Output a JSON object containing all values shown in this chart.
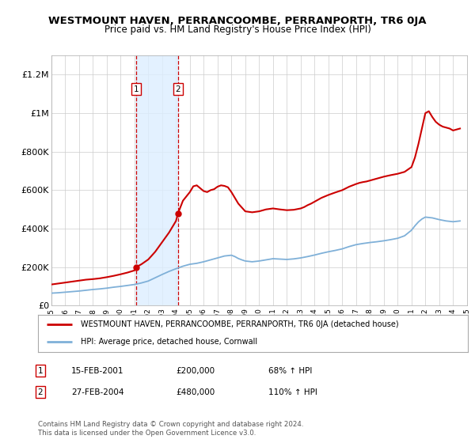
{
  "title": "WESTMOUNT HAVEN, PERRANCOOMBE, PERRANPORTH, TR6 0JA",
  "subtitle": "Price paid vs. HM Land Registry's House Price Index (HPI)",
  "ylim": [
    0,
    1300000
  ],
  "yticks": [
    0,
    200000,
    400000,
    600000,
    800000,
    1000000,
    1200000
  ],
  "ytick_labels": [
    "£0",
    "£200K",
    "£400K",
    "£600K",
    "£800K",
    "£1M",
    "£1.2M"
  ],
  "background_color": "#ffffff",
  "plot_bg_color": "#ffffff",
  "grid_color": "#cccccc",
  "red_line_color": "#cc0000",
  "blue_line_color": "#7fb0d8",
  "highlight_fill": "#ddeeff",
  "highlight_edge": "#cc0000",
  "transaction1": {
    "date_num": 2001.12,
    "value": 200000,
    "label": "1",
    "date_str": "15-FEB-2001",
    "pct": "68%"
  },
  "transaction2": {
    "date_num": 2004.15,
    "value": 480000,
    "label": "2",
    "date_str": "27-FEB-2004",
    "pct": "110%"
  },
  "legend_red": "WESTMOUNT HAVEN, PERRANCOOMBE, PERRANPORTH, TR6 0JA (detached house)",
  "legend_blue": "HPI: Average price, detached house, Cornwall",
  "footer": "Contains HM Land Registry data © Crown copyright and database right 2024.\nThis data is licensed under the Open Government Licence v3.0.",
  "hpi_years": [
    1995,
    1995.5,
    1996,
    1996.5,
    1997,
    1997.5,
    1998,
    1998.5,
    1999,
    1999.5,
    2000,
    2000.5,
    2001,
    2001.5,
    2002,
    2002.5,
    2003,
    2003.5,
    2004,
    2004.5,
    2005,
    2005.5,
    2006,
    2006.5,
    2007,
    2007.5,
    2008,
    2008.25,
    2008.5,
    2008.75,
    2009,
    2009.5,
    2010,
    2010.5,
    2011,
    2011.5,
    2012,
    2012.5,
    2013,
    2013.5,
    2014,
    2014.5,
    2015,
    2015.5,
    2016,
    2016.5,
    2017,
    2017.5,
    2018,
    2018.5,
    2019,
    2019.5,
    2020,
    2020.5,
    2021,
    2021.25,
    2021.5,
    2021.75,
    2022,
    2022.5,
    2023,
    2023.5,
    2024,
    2024.5
  ],
  "hpi_values": [
    65000,
    67000,
    70000,
    73000,
    76000,
    80000,
    84000,
    87000,
    91000,
    96000,
    100000,
    105000,
    110000,
    118000,
    128000,
    145000,
    162000,
    178000,
    192000,
    205000,
    215000,
    220000,
    228000,
    238000,
    248000,
    258000,
    262000,
    255000,
    245000,
    238000,
    232000,
    228000,
    232000,
    238000,
    244000,
    242000,
    240000,
    243000,
    248000,
    255000,
    263000,
    272000,
    280000,
    287000,
    295000,
    307000,
    317000,
    323000,
    328000,
    332000,
    337000,
    343000,
    350000,
    363000,
    392000,
    415000,
    435000,
    450000,
    460000,
    456000,
    447000,
    440000,
    436000,
    440000
  ],
  "house_years": [
    1995,
    1995.5,
    1996,
    1996.5,
    1997,
    1997.5,
    1998,
    1998.5,
    1999,
    1999.5,
    2000,
    2000.5,
    2001,
    2001.12,
    2001.5,
    2002,
    2002.5,
    2003,
    2003.5,
    2004,
    2004.15,
    2004.5,
    2005,
    2005.25,
    2005.5,
    2005.75,
    2006,
    2006.25,
    2006.5,
    2006.75,
    2007,
    2007.25,
    2007.5,
    2007.75,
    2008,
    2008.25,
    2008.5,
    2008.75,
    2009,
    2009.5,
    2010,
    2010.5,
    2011,
    2011.5,
    2012,
    2012.5,
    2013,
    2013.25,
    2013.5,
    2013.75,
    2014,
    2014.5,
    2015,
    2015.5,
    2016,
    2016.5,
    2017,
    2017.25,
    2017.5,
    2017.75,
    2018,
    2018.25,
    2018.5,
    2018.75,
    2019,
    2019.5,
    2020,
    2020.5,
    2021,
    2021.25,
    2021.5,
    2021.75,
    2022,
    2022.25,
    2022.5,
    2022.75,
    2023,
    2023.25,
    2023.5,
    2023.75,
    2024,
    2024.5
  ],
  "house_values": [
    110000,
    115000,
    120000,
    125000,
    130000,
    135000,
    138000,
    142000,
    148000,
    155000,
    163000,
    172000,
    183000,
    200000,
    215000,
    240000,
    280000,
    330000,
    380000,
    440000,
    480000,
    545000,
    590000,
    620000,
    625000,
    610000,
    595000,
    590000,
    600000,
    605000,
    618000,
    625000,
    622000,
    615000,
    590000,
    560000,
    530000,
    510000,
    490000,
    485000,
    490000,
    500000,
    505000,
    500000,
    496000,
    498000,
    505000,
    512000,
    522000,
    530000,
    540000,
    560000,
    575000,
    588000,
    600000,
    618000,
    632000,
    638000,
    642000,
    645000,
    650000,
    655000,
    660000,
    665000,
    670000,
    678000,
    685000,
    695000,
    720000,
    770000,
    840000,
    920000,
    1000000,
    1010000,
    980000,
    955000,
    940000,
    930000,
    925000,
    920000,
    910000,
    920000
  ]
}
